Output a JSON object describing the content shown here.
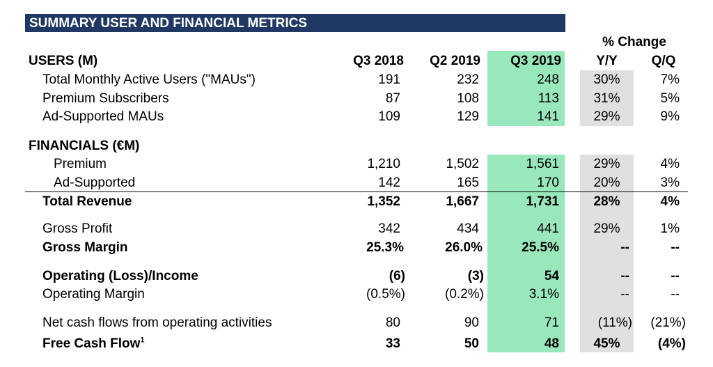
{
  "title": "SUMMARY USER AND FINANCIAL METRICS",
  "pct_change_header": "% Change",
  "columns": [
    "Q3 2018",
    "Q2 2019",
    "Q3 2019",
    "Y/Y",
    "Q/Q"
  ],
  "users": {
    "header": "USERS (M)",
    "rows": [
      {
        "label": "Total Monthly Active Users (\"MAUs\")",
        "values": [
          "191",
          "232",
          "248",
          "30%",
          "7%"
        ]
      },
      {
        "label": "Premium Subscribers",
        "values": [
          "87",
          "108",
          "113",
          "31%",
          "5%"
        ]
      },
      {
        "label": "Ad-Supported MAUs",
        "values": [
          "109",
          "129",
          "141",
          "29%",
          "9%"
        ]
      }
    ]
  },
  "financials": {
    "header": "FINANCIALS (€M)",
    "rows": [
      {
        "label": "Premium",
        "values": [
          "1,210",
          "1,502",
          "1,561",
          "29%",
          "4%"
        ]
      },
      {
        "label": "Ad-Supported",
        "values": [
          "142",
          "165",
          "170",
          "20%",
          "3%"
        ]
      },
      {
        "label": "Total Revenue",
        "values": [
          "1,352",
          "1,667",
          "1,731",
          "28%",
          "4%"
        ]
      },
      {
        "label": "Gross Profit",
        "values": [
          "342",
          "434",
          "441",
          "29%",
          "1%"
        ]
      },
      {
        "label": "Gross Margin",
        "values": [
          "25.3%",
          "26.0%",
          "25.5%",
          "--",
          "--"
        ]
      },
      {
        "label": "Operating (Loss)/Income",
        "values": [
          "(6)",
          "(3)",
          "54",
          "--",
          "--"
        ]
      },
      {
        "label": "Operating Margin",
        "values": [
          "(0.5%)",
          "(0.2%)",
          "3.1%",
          "--",
          "--"
        ]
      },
      {
        "label": "Net cash flows from operating activities",
        "values": [
          "80",
          "90",
          "71",
          "(11%)",
          "(21%)"
        ]
      },
      {
        "label": "Free Cash Flow",
        "footnote": "1",
        "values": [
          "33",
          "50",
          "48",
          "45%",
          "(4%)"
        ]
      }
    ]
  },
  "colors": {
    "banner": "#203864",
    "highlight_column": "#99e8bc",
    "change_column": "#e0e0e0"
  }
}
